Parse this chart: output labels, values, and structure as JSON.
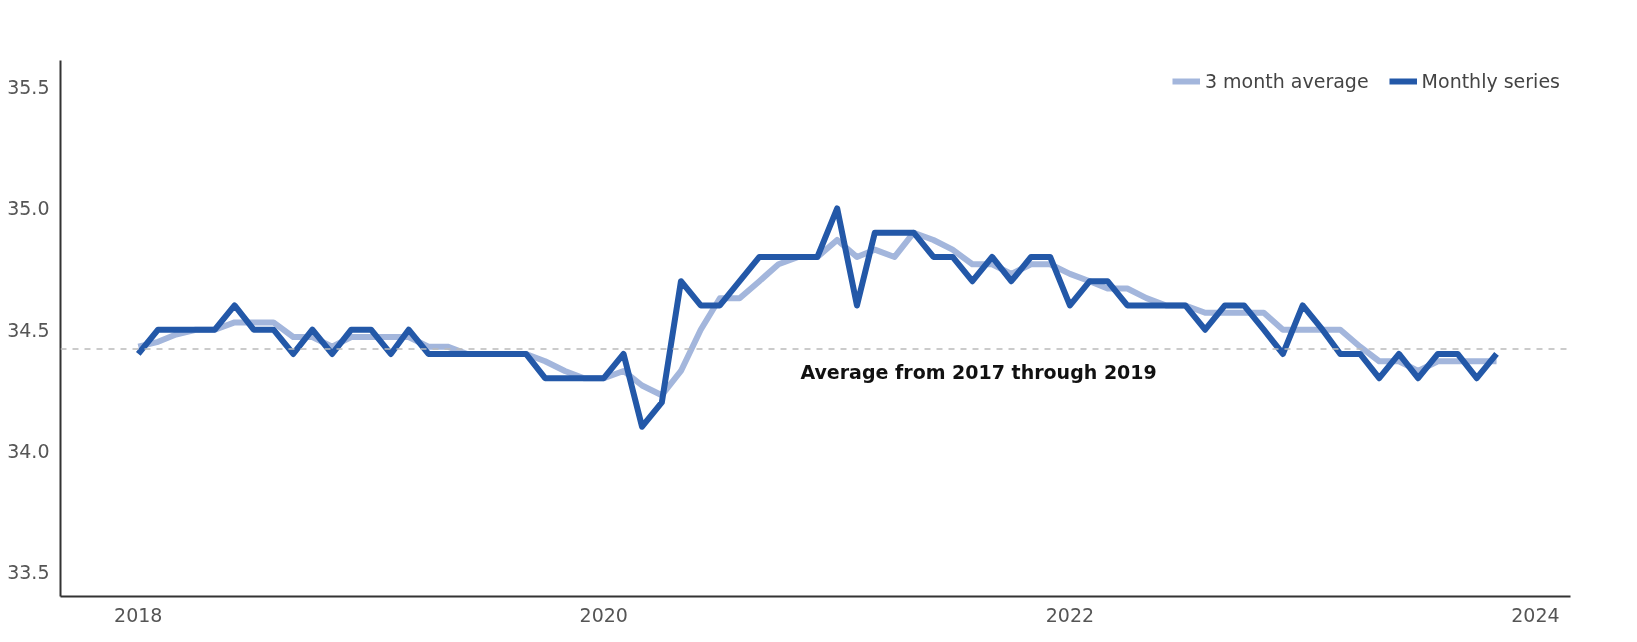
{
  "chart_data": {
    "type": "line",
    "x": [
      "2018-01",
      "2018-02",
      "2018-03",
      "2018-04",
      "2018-05",
      "2018-06",
      "2018-07",
      "2018-08",
      "2018-09",
      "2018-10",
      "2018-11",
      "2018-12",
      "2019-01",
      "2019-02",
      "2019-03",
      "2019-04",
      "2019-05",
      "2019-06",
      "2019-07",
      "2019-08",
      "2019-09",
      "2019-10",
      "2019-11",
      "2019-12",
      "2020-01",
      "2020-02",
      "2020-03",
      "2020-04",
      "2020-05",
      "2020-06",
      "2020-07",
      "2020-08",
      "2020-09",
      "2020-10",
      "2020-11",
      "2020-12",
      "2021-01",
      "2021-02",
      "2021-03",
      "2021-04",
      "2021-05",
      "2021-06",
      "2021-07",
      "2021-08",
      "2021-09",
      "2021-10",
      "2021-11",
      "2021-12",
      "2022-01",
      "2022-02",
      "2022-03",
      "2022-04",
      "2022-05",
      "2022-06",
      "2022-07",
      "2022-08",
      "2022-09",
      "2022-10",
      "2022-11",
      "2022-12",
      "2023-01",
      "2023-02",
      "2023-03",
      "2023-04",
      "2023-05",
      "2023-06",
      "2023-07",
      "2023-08",
      "2023-09",
      "2023-10",
      "2023-11"
    ],
    "series": [
      {
        "name": "3 month average",
        "color": "#a3b6dc",
        "values": [
          34.43,
          34.45,
          34.48,
          34.5,
          34.5,
          34.53,
          34.53,
          34.53,
          34.47,
          34.47,
          34.43,
          34.47,
          34.47,
          34.47,
          34.47,
          34.43,
          34.43,
          34.4,
          34.4,
          34.4,
          34.4,
          34.37,
          34.33,
          34.3,
          34.3,
          34.33,
          34.27,
          34.23,
          34.33,
          34.5,
          34.63,
          34.63,
          34.7,
          34.77,
          34.8,
          34.8,
          34.87,
          34.8,
          34.83,
          34.8,
          34.9,
          34.87,
          34.83,
          34.77,
          34.77,
          34.73,
          34.77,
          34.77,
          34.73,
          34.7,
          34.67,
          34.67,
          34.63,
          34.6,
          34.6,
          34.57,
          34.57,
          34.57,
          34.57,
          34.5,
          34.5,
          34.5,
          34.5,
          34.43,
          34.37,
          34.37,
          34.33,
          34.37,
          34.37,
          34.37,
          34.37
        ]
      },
      {
        "name": "Monthly series",
        "color": "#2358a8",
        "values": [
          34.4,
          34.5,
          34.5,
          34.5,
          34.5,
          34.6,
          34.5,
          34.5,
          34.4,
          34.5,
          34.4,
          34.5,
          34.5,
          34.4,
          34.5,
          34.4,
          34.4,
          34.4,
          34.4,
          34.4,
          34.4,
          34.3,
          34.3,
          34.3,
          34.3,
          34.4,
          34.1,
          34.2,
          34.7,
          34.6,
          34.6,
          34.7,
          34.8,
          34.8,
          34.8,
          34.8,
          35.0,
          34.6,
          34.9,
          34.9,
          34.9,
          34.8,
          34.8,
          34.7,
          34.8,
          34.7,
          34.8,
          34.8,
          34.6,
          34.7,
          34.7,
          34.6,
          34.6,
          34.6,
          34.6,
          34.5,
          34.6,
          34.6,
          34.5,
          34.4,
          34.6,
          34.5,
          34.4,
          34.4,
          34.3,
          34.4,
          34.3,
          34.4,
          34.4,
          34.3,
          34.4
        ]
      }
    ],
    "xlim": [
      "2017-09-01",
      "2024-02-25"
    ],
    "xticks": [
      {
        "value": "2018",
        "label": "2018"
      },
      {
        "value": "2020",
        "label": "2020"
      },
      {
        "value": "2022",
        "label": "2022"
      },
      {
        "value": "2024",
        "label": "2024"
      }
    ],
    "ylim": [
      33.4,
      35.61
    ],
    "yticks": [
      {
        "value": 33.5,
        "label": "33.5"
      },
      {
        "value": 34.0,
        "label": "34.0"
      },
      {
        "value": 34.5,
        "label": "34.5"
      },
      {
        "value": 35.0,
        "label": "35.0"
      },
      {
        "value": 35.5,
        "label": "35.5"
      }
    ],
    "ref_lines": [
      {
        "axis": "y",
        "value": 34.42,
        "label": "Average from 2017 through 2019",
        "color": "#bbbbbb",
        "line_style": "dashed"
      }
    ],
    "grid": false,
    "legend": "top right",
    "marker": "none",
    "line_style": "solid"
  }
}
